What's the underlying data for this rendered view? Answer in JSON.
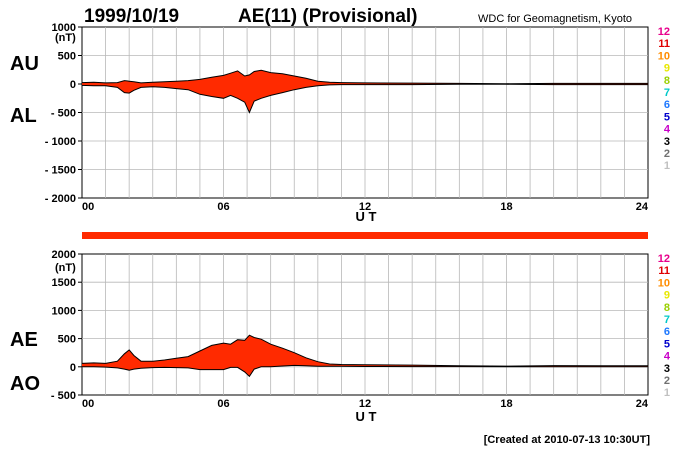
{
  "header": {
    "date": "1999/10/19",
    "title": "AE(11) (Provisional)",
    "source": "WDC for Geomagnetism, Kyoto"
  },
  "footer": {
    "created": "[Created at 2010-07-13 10:30UT]"
  },
  "colors": {
    "fill": "#ff2a00",
    "line": "#000000",
    "grid": "#b8b8b8",
    "strip": "#ff2a00"
  },
  "legend_scale": {
    "labels": [
      "12",
      "11",
      "10",
      "9",
      "8",
      "7",
      "6",
      "5",
      "4",
      "3",
      "2",
      "1"
    ],
    "colors": [
      "#e8008c",
      "#e00000",
      "#ff8c00",
      "#e8e800",
      "#9ad000",
      "#00c8c8",
      "#1e78ff",
      "#0000cc",
      "#c800c8",
      "#000000",
      "#707070",
      "#c0c0c0"
    ]
  },
  "chart_data": [
    {
      "type": "area",
      "id": "au_al",
      "series_labels": [
        "AU",
        "AL"
      ],
      "unit_label": "(nT)",
      "xlabel": "U T",
      "x_ticks": [
        "00",
        "06",
        "12",
        "18",
        "24"
      ],
      "y_ticks": [
        "1000",
        "500",
        "0",
        "- 500",
        "- 1000",
        "- 1500",
        "- 2000"
      ],
      "y_tick_values": [
        1000,
        500,
        0,
        -500,
        -1000,
        -1500,
        -2000
      ],
      "ylim": [
        -2000,
        1000
      ],
      "xlim": [
        0,
        24
      ],
      "grid": true,
      "x": [
        0,
        0.5,
        1,
        1.5,
        1.8,
        2,
        2.2,
        2.5,
        3,
        3.5,
        4,
        4.5,
        5,
        5.5,
        6,
        6.3,
        6.6,
        6.9,
        7.1,
        7.3,
        7.6,
        8,
        8.5,
        9,
        9.5,
        10,
        10.5,
        11,
        12,
        14,
        16,
        18,
        20,
        22,
        24
      ],
      "upper": [
        25,
        30,
        20,
        25,
        60,
        50,
        40,
        20,
        30,
        40,
        50,
        60,
        80,
        120,
        150,
        190,
        230,
        140,
        160,
        220,
        240,
        200,
        180,
        140,
        100,
        50,
        30,
        25,
        20,
        15,
        10,
        5,
        10,
        10,
        10
      ],
      "lower": [
        -25,
        -30,
        -30,
        -60,
        -150,
        -160,
        -110,
        -60,
        -50,
        -60,
        -80,
        -100,
        -180,
        -220,
        -250,
        -200,
        -250,
        -320,
        -500,
        -300,
        -250,
        -200,
        -150,
        -100,
        -60,
        -30,
        -15,
        -10,
        -10,
        -10,
        -5,
        -5,
        -10,
        -10,
        -10
      ]
    },
    {
      "type": "area",
      "id": "ae_ao",
      "series_labels": [
        "AE",
        "AO"
      ],
      "unit_label": "(nT)",
      "xlabel": "U T",
      "x_ticks": [
        "00",
        "06",
        "12",
        "18",
        "24"
      ],
      "y_ticks": [
        "2000",
        "1500",
        "1000",
        "500",
        "0",
        "- 500"
      ],
      "y_tick_values": [
        2000,
        1500,
        1000,
        500,
        0,
        -500
      ],
      "ylim": [
        -500,
        2000
      ],
      "xlim": [
        0,
        24
      ],
      "grid": true,
      "x": [
        0,
        0.5,
        1,
        1.5,
        1.8,
        2,
        2.2,
        2.5,
        3,
        3.5,
        4,
        4.5,
        5,
        5.5,
        6,
        6.3,
        6.6,
        6.9,
        7.1,
        7.3,
        7.6,
        8,
        8.5,
        9,
        9.5,
        10,
        10.5,
        11,
        12,
        14,
        16,
        18,
        20,
        22,
        24
      ],
      "upper": [
        60,
        70,
        60,
        100,
        230,
        300,
        200,
        100,
        100,
        120,
        150,
        180,
        280,
        380,
        420,
        400,
        480,
        470,
        560,
        520,
        490,
        400,
        330,
        250,
        160,
        90,
        50,
        40,
        35,
        30,
        20,
        12,
        22,
        20,
        20
      ],
      "lower": [
        0,
        0,
        -5,
        -20,
        -40,
        -60,
        -40,
        -25,
        -15,
        -10,
        -15,
        -20,
        -50,
        -50,
        -50,
        -10,
        -10,
        -90,
        -170,
        -40,
        0,
        0,
        15,
        25,
        20,
        10,
        10,
        10,
        5,
        3,
        3,
        0,
        0,
        0,
        0
      ]
    }
  ]
}
